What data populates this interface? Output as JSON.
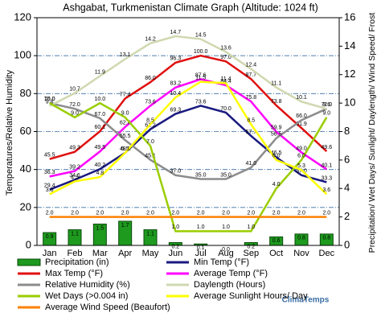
{
  "chart_data": {
    "type": "combo",
    "title": "Ashgabat, Turkmenistan Climate Graph (Altitude: 1024 ft)",
    "y_label": "Temperatures/Relative Humidity",
    "y2_label": "Precipitation/ Wet Days/ Sunlight/ Daylength/ Wind Speed/ Frost",
    "credit": "ClimaTemps",
    "categories": [
      "Jan",
      "Feb",
      "Mar",
      "Apr",
      "May",
      "Jun",
      "Jul",
      "Aug",
      "Sep",
      "Oct",
      "Nov",
      "Dec"
    ],
    "ylim": [
      0,
      120
    ],
    "yticks": [
      0,
      20,
      40,
      60,
      80,
      100,
      120
    ],
    "y2lim": [
      0,
      16
    ],
    "y2ticks": [
      0,
      2,
      4,
      6,
      8,
      10,
      12,
      14,
      16
    ],
    "grid": true,
    "series": [
      {
        "name": "Precipitation (in)",
        "type": "bar",
        "axis": "y2",
        "color": "#1e9a1e",
        "values": [
          0.9,
          1.1,
          1.5,
          1.7,
          1.1,
          0.2,
          0.1,
          0.0,
          0.2,
          0.6,
          0.8,
          0.8
        ],
        "value_labels": [
          "0.9",
          "1.1",
          "1.5",
          "1.7",
          "1.1",
          "0.2",
          "0.1",
          "0.0",
          "0.2",
          "0.6",
          "0.8",
          "0.8"
        ]
      },
      {
        "name": "Min Temp (°F)",
        "type": "line",
        "color": "#1a1a80",
        "values": [
          29.4,
          34.6,
          40.2,
          48.8,
          61.2,
          69.3,
          73.6,
          70.0,
          57.7,
          46.5,
          37.0,
          33.3
        ],
        "value_labels": [
          "29.4",
          "34.6",
          "40.2",
          "48.8",
          "61.2",
          "69.3",
          "73.6",
          "70.0",
          "57.7",
          "46.5",
          "37.0",
          "33.3"
        ]
      },
      {
        "name": "Max Temp (°F)",
        "type": "line",
        "color": "#e01010",
        "values": [
          45.5,
          49.3,
          60.1,
          77.4,
          86.0,
          96.3,
          100.0,
          97.0,
          87.7,
          73.8,
          61.9,
          49.6
        ],
        "value_labels": [
          "45.5",
          "49.3",
          "60.1",
          "77.4",
          "86.0",
          "96.3",
          "100.0",
          "97.0",
          "87.7",
          "73.8",
          "61.9",
          "49.6"
        ]
      },
      {
        "name": "Average Temp (°F)",
        "type": "line",
        "color": "#ff00ff",
        "values": [
          36.3,
          39.2,
          49.5,
          62.4,
          73.6,
          83.2,
          87.6,
          84.4,
          75.8,
          59.9,
          49.0,
          40.1
        ],
        "value_labels": [
          "36.3",
          "39.2",
          "49.5",
          "62.4",
          "73.6",
          "83.2",
          "87.6",
          "84.4",
          "75.8",
          "59.9",
          "49.0",
          "40.1"
        ]
      },
      {
        "name": "Relative Humidity (%)",
        "type": "line",
        "color": "#8c8c8c",
        "values": [
          75.0,
          72.0,
          67.0,
          55.5,
          45.1,
          37.0,
          35.0,
          35.0,
          41.0,
          56.5,
          66.0,
          72.0
        ],
        "value_labels": [
          "75.0",
          "72.0",
          "67.0",
          "55.5",
          "45.1",
          "37.0",
          "35.0",
          "35.0",
          "41.0",
          "56.5",
          "66.0",
          "72.0"
        ]
      },
      {
        "name": "Daylength (Hours)",
        "type": "line",
        "axis": "y2",
        "color": "#cfd8b0",
        "values": [
          9.8,
          10.7,
          11.9,
          13.1,
          14.2,
          14.7,
          14.5,
          13.6,
          12.4,
          11.1,
          10.1,
          9.6
        ],
        "value_labels": [
          "9.8",
          "10.7",
          "11.9",
          "13.1",
          "14.2",
          "14.7",
          "14.5",
          "13.6",
          "12.4",
          "11.1",
          "10.1",
          "9.6"
        ]
      },
      {
        "name": "Wet Days (>0.004 in)",
        "type": "line",
        "axis": "y2",
        "color": "#9acd00",
        "values": [
          10.0,
          9.0,
          10.0,
          9.0,
          7.0,
          1.0,
          1.0,
          1.0,
          1.0,
          4.0,
          6.0,
          9.0
        ],
        "value_labels": [
          "10.0",
          "9.0",
          "10.0",
          "9.0",
          "7.0",
          "1.0",
          "1.0",
          "1.0",
          "1.0",
          "4.0",
          "6.0",
          "9.0"
        ]
      },
      {
        "name": "Average Sunlight Hours/ Day",
        "type": "line",
        "axis": "y2",
        "color": "#ffff00",
        "values": [
          3.6,
          4.5,
          4.8,
          6.5,
          8.5,
          10.4,
          11.5,
          11.4,
          8.5,
          6.0,
          5.3,
          3.6
        ],
        "value_labels": [
          "3.6",
          "4.5",
          "4.8",
          "6.5",
          "8.5",
          "10.4",
          "11.5",
          "11.4",
          "8.5",
          "6.0",
          "5.3",
          "3.6"
        ]
      },
      {
        "name": "Average Wind Speed (Beaufort)",
        "type": "line",
        "axis": "y2",
        "color": "#ff8000",
        "values": [
          2.0,
          2.0,
          2.0,
          2.0,
          2.0,
          2.0,
          2.0,
          2.0,
          2.0,
          2.0,
          2.0,
          2.0
        ],
        "value_labels": [
          "2.0",
          "2.0",
          "2.0",
          "2.0",
          "2.0",
          "2.0",
          "2.0",
          "2.0",
          "2.0",
          "2.0",
          "2.0",
          "2.0"
        ]
      }
    ]
  }
}
